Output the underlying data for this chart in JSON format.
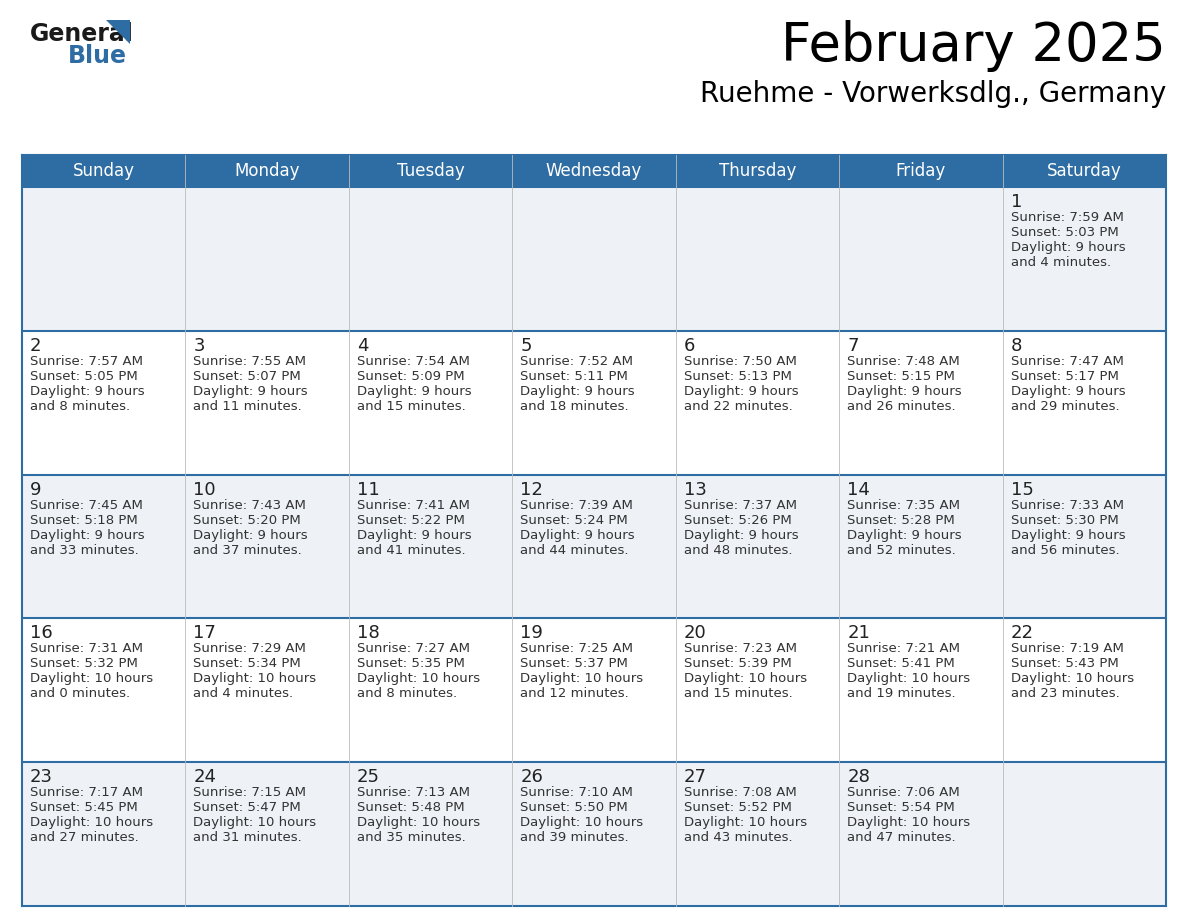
{
  "title": "February 2025",
  "subtitle": "Ruehme - Vorwerksdlg., Germany",
  "days_of_week": [
    "Sunday",
    "Monday",
    "Tuesday",
    "Wednesday",
    "Thursday",
    "Friday",
    "Saturday"
  ],
  "header_bg": "#2e6da4",
  "header_text": "#ffffff",
  "row_bg_odd": "#eef2f7",
  "row_bg_even": "#ffffff",
  "day_num_color": "#222222",
  "text_color": "#333333",
  "line_color": "#2e6da4",
  "logo_black": "#1a1a1a",
  "logo_blue": "#2e6da4",
  "calendar_data": [
    [
      null,
      null,
      null,
      null,
      null,
      null,
      {
        "day": "1",
        "sunrise": "7:59 AM",
        "sunset": "5:03 PM",
        "daylight": "9 hours",
        "daylight2": "and 4 minutes."
      }
    ],
    [
      {
        "day": "2",
        "sunrise": "7:57 AM",
        "sunset": "5:05 PM",
        "daylight": "9 hours",
        "daylight2": "and 8 minutes."
      },
      {
        "day": "3",
        "sunrise": "7:55 AM",
        "sunset": "5:07 PM",
        "daylight": "9 hours",
        "daylight2": "and 11 minutes."
      },
      {
        "day": "4",
        "sunrise": "7:54 AM",
        "sunset": "5:09 PM",
        "daylight": "9 hours",
        "daylight2": "and 15 minutes."
      },
      {
        "day": "5",
        "sunrise": "7:52 AM",
        "sunset": "5:11 PM",
        "daylight": "9 hours",
        "daylight2": "and 18 minutes."
      },
      {
        "day": "6",
        "sunrise": "7:50 AM",
        "sunset": "5:13 PM",
        "daylight": "9 hours",
        "daylight2": "and 22 minutes."
      },
      {
        "day": "7",
        "sunrise": "7:48 AM",
        "sunset": "5:15 PM",
        "daylight": "9 hours",
        "daylight2": "and 26 minutes."
      },
      {
        "day": "8",
        "sunrise": "7:47 AM",
        "sunset": "5:17 PM",
        "daylight": "9 hours",
        "daylight2": "and 29 minutes."
      }
    ],
    [
      {
        "day": "9",
        "sunrise": "7:45 AM",
        "sunset": "5:18 PM",
        "daylight": "9 hours",
        "daylight2": "and 33 minutes."
      },
      {
        "day": "10",
        "sunrise": "7:43 AM",
        "sunset": "5:20 PM",
        "daylight": "9 hours",
        "daylight2": "and 37 minutes."
      },
      {
        "day": "11",
        "sunrise": "7:41 AM",
        "sunset": "5:22 PM",
        "daylight": "9 hours",
        "daylight2": "and 41 minutes."
      },
      {
        "day": "12",
        "sunrise": "7:39 AM",
        "sunset": "5:24 PM",
        "daylight": "9 hours",
        "daylight2": "and 44 minutes."
      },
      {
        "day": "13",
        "sunrise": "7:37 AM",
        "sunset": "5:26 PM",
        "daylight": "9 hours",
        "daylight2": "and 48 minutes."
      },
      {
        "day": "14",
        "sunrise": "7:35 AM",
        "sunset": "5:28 PM",
        "daylight": "9 hours",
        "daylight2": "and 52 minutes."
      },
      {
        "day": "15",
        "sunrise": "7:33 AM",
        "sunset": "5:30 PM",
        "daylight": "9 hours",
        "daylight2": "and 56 minutes."
      }
    ],
    [
      {
        "day": "16",
        "sunrise": "7:31 AM",
        "sunset": "5:32 PM",
        "daylight": "10 hours",
        "daylight2": "and 0 minutes."
      },
      {
        "day": "17",
        "sunrise": "7:29 AM",
        "sunset": "5:34 PM",
        "daylight": "10 hours",
        "daylight2": "and 4 minutes."
      },
      {
        "day": "18",
        "sunrise": "7:27 AM",
        "sunset": "5:35 PM",
        "daylight": "10 hours",
        "daylight2": "and 8 minutes."
      },
      {
        "day": "19",
        "sunrise": "7:25 AM",
        "sunset": "5:37 PM",
        "daylight": "10 hours",
        "daylight2": "and 12 minutes."
      },
      {
        "day": "20",
        "sunrise": "7:23 AM",
        "sunset": "5:39 PM",
        "daylight": "10 hours",
        "daylight2": "and 15 minutes."
      },
      {
        "day": "21",
        "sunrise": "7:21 AM",
        "sunset": "5:41 PM",
        "daylight": "10 hours",
        "daylight2": "and 19 minutes."
      },
      {
        "day": "22",
        "sunrise": "7:19 AM",
        "sunset": "5:43 PM",
        "daylight": "10 hours",
        "daylight2": "and 23 minutes."
      }
    ],
    [
      {
        "day": "23",
        "sunrise": "7:17 AM",
        "sunset": "5:45 PM",
        "daylight": "10 hours",
        "daylight2": "and 27 minutes."
      },
      {
        "day": "24",
        "sunrise": "7:15 AM",
        "sunset": "5:47 PM",
        "daylight": "10 hours",
        "daylight2": "and 31 minutes."
      },
      {
        "day": "25",
        "sunrise": "7:13 AM",
        "sunset": "5:48 PM",
        "daylight": "10 hours",
        "daylight2": "and 35 minutes."
      },
      {
        "day": "26",
        "sunrise": "7:10 AM",
        "sunset": "5:50 PM",
        "daylight": "10 hours",
        "daylight2": "and 39 minutes."
      },
      {
        "day": "27",
        "sunrise": "7:08 AM",
        "sunset": "5:52 PM",
        "daylight": "10 hours",
        "daylight2": "and 43 minutes."
      },
      {
        "day": "28",
        "sunrise": "7:06 AM",
        "sunset": "5:54 PM",
        "daylight": "10 hours",
        "daylight2": "and 47 minutes."
      },
      null
    ]
  ]
}
